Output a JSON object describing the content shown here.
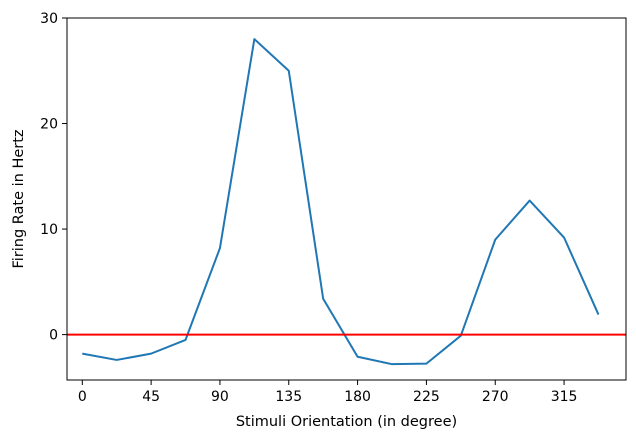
{
  "chart_data": {
    "type": "line",
    "title": "",
    "xlabel": "Stimuli Orientation (in degree)",
    "ylabel": "Firing Rate in Hertz",
    "xlim": [
      -10,
      355.5
    ],
    "ylim": [
      -4.3,
      30
    ],
    "xticks": [
      0,
      45,
      90,
      135,
      180,
      225,
      270,
      315
    ],
    "yticks": [
      0,
      10,
      20,
      30
    ],
    "grid": false,
    "legend": "none",
    "series": [
      {
        "color": "#1f77b4",
        "x": [
          0,
          22.5,
          45,
          67.5,
          90,
          112.5,
          135,
          157.5,
          180,
          202.5,
          225,
          247.5,
          270,
          292.5,
          315,
          337.5
        ],
        "y": [
          -1.8,
          -2.4,
          -1.8,
          -0.5,
          8.2,
          28.0,
          25.0,
          3.4,
          -2.1,
          -2.8,
          -2.75,
          -0.1,
          9.0,
          12.7,
          9.2,
          1.9
        ]
      }
    ],
    "reference_line": {
      "y": 0,
      "color": "#ff0000"
    }
  }
}
